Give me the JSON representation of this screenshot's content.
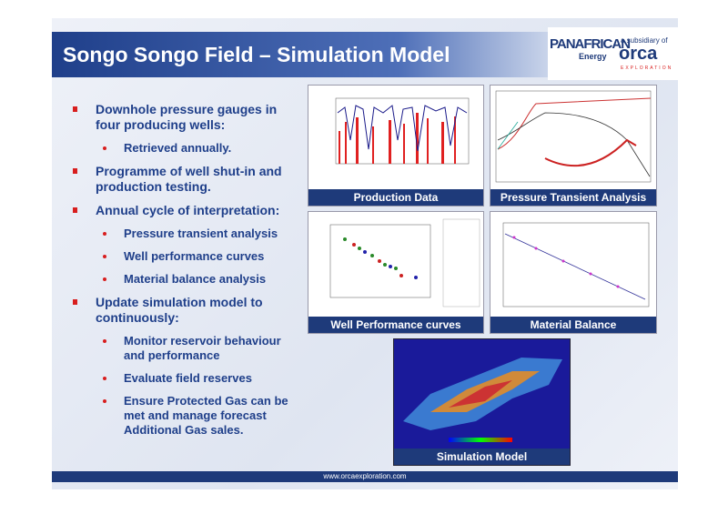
{
  "header": {
    "title": "Songo Songo Field – Simulation Model"
  },
  "logo": {
    "brand": "PANAFRICAN",
    "brand_sub": "Energy",
    "subsidiary_text": "a subsidiary of",
    "parent": "orca",
    "parent_sub": "EXPLORATION"
  },
  "bullets": [
    {
      "text": "Downhole pressure gauges in four producing wells:",
      "sub": [
        "Retrieved annually."
      ]
    },
    {
      "text": "Programme of well shut-in and production testing.",
      "sub": []
    },
    {
      "text": "Annual cycle of interpretation:",
      "sub": [
        "Pressure transient analysis",
        "Well performance curves",
        "Material balance analysis"
      ]
    },
    {
      "text": "Update simulation model to continuously:",
      "sub": [
        "Monitor reservoir behaviour and performance",
        "Evaluate field reserves",
        "Ensure Protected Gas can be met and manage forecast Additional Gas sales."
      ]
    }
  ],
  "figures": [
    {
      "caption": "Production Data"
    },
    {
      "caption": "Pressure Transient Analysis"
    },
    {
      "caption": "Well Performance curves"
    },
    {
      "caption": "Material Balance"
    },
    {
      "caption": "Simulation Model"
    }
  ],
  "footer": {
    "url": "www.orcaexploration.com"
  }
}
